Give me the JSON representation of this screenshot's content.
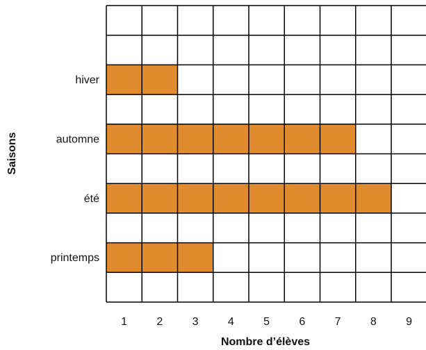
{
  "chart_data": {
    "type": "bar",
    "orientation": "horizontal",
    "x_label": "Nombre d’élèves",
    "y_label": "Saisons",
    "categories": [
      "hiver",
      "automne",
      "été",
      "printemps"
    ],
    "values": [
      2,
      7,
      8,
      3
    ],
    "color": "#e08c2e",
    "xlim": [
      0,
      9
    ],
    "xticks": [
      1,
      2,
      3,
      4,
      5,
      6,
      7,
      8,
      9
    ],
    "grid": true
  }
}
